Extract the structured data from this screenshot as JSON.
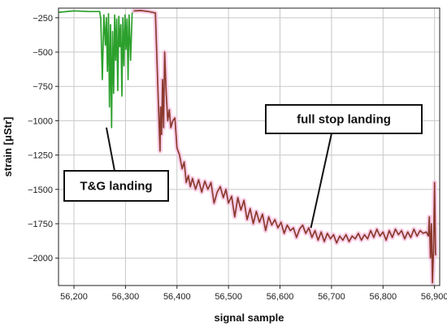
{
  "chart_data": {
    "type": "line",
    "title": "",
    "xlabel": "signal sample",
    "ylabel": "strain [μStr]",
    "xlim": [
      56170,
      56910
    ],
    "ylim": [
      -2200,
      -180
    ],
    "grid": true,
    "x_ticks": [
      56200,
      56300,
      56400,
      56500,
      56600,
      56700,
      56800,
      56900
    ],
    "x_tick_labels": [
      "56,200",
      "56,300",
      "56,400",
      "56,500",
      "56,600",
      "56,700",
      "56,800",
      "56,900"
    ],
    "y_ticks": [
      -250,
      -500,
      -750,
      -1000,
      -1250,
      -1500,
      -1750,
      -2000
    ],
    "y_tick_labels": [
      "−250",
      "−500",
      "−750",
      "−1000",
      "−1250",
      "−1500",
      "−1750",
      "−2000"
    ],
    "colors": {
      "series_tg": "#2ca02c",
      "series_fs": "#8b3a2e",
      "glow": "#f7c6e3",
      "grid": "#c8c8c8"
    },
    "series": [
      {
        "key": "tg",
        "x": [
          56170,
          56200,
          56230,
          56250,
          56252,
          56255,
          56258,
          56261,
          56263,
          56265,
          56267,
          56269,
          56271,
          56273,
          56275,
          56277,
          56279,
          56281,
          56283,
          56285,
          56287,
          56289,
          56291,
          56293,
          56295,
          56297,
          56299,
          56301,
          56303,
          56305,
          56307,
          56310,
          56313,
          56316
        ],
        "y": [
          -210,
          -200,
          -205,
          -205,
          -260,
          -700,
          -230,
          -450,
          -250,
          -640,
          -220,
          -900,
          -300,
          -1050,
          -350,
          -800,
          -230,
          -560,
          -260,
          -780,
          -240,
          -460,
          -300,
          -820,
          -250,
          -600,
          -230,
          -480,
          -260,
          -700,
          -230,
          -560,
          -215,
          -205
        ]
      },
      {
        "key": "fs",
        "x": [
          56316,
          56330,
          56345,
          56358,
          56365,
          56367,
          56368,
          56370,
          56372,
          56374,
          56376,
          56379,
          56382,
          56385,
          56388,
          56392,
          56396,
          56400,
          56405,
          56410,
          56414,
          56418,
          56422,
          56426,
          56430,
          56436,
          56442,
          56448,
          56454,
          56460,
          56466,
          56472,
          56478,
          56484,
          56490,
          56495,
          56500,
          56506,
          56512,
          56518,
          56524,
          56530,
          56536,
          56542,
          56548,
          56554,
          56560,
          56566,
          56572,
          56578,
          56584,
          56590,
          56596,
          56602,
          56608,
          56614,
          56620,
          56626,
          56632,
          56638,
          56644,
          56650,
          56656,
          56662,
          56668,
          56674,
          56680,
          56686,
          56692,
          56698,
          56704,
          56710,
          56716,
          56722,
          56728,
          56734,
          56740,
          56746,
          56752,
          56758,
          56764,
          56770,
          56776,
          56782,
          56788,
          56794,
          56800,
          56806,
          56812,
          56818,
          56824,
          56830,
          56836,
          56842,
          56848,
          56854,
          56860,
          56866,
          56872,
          56878,
          56884,
          56888,
          56890,
          56892,
          56894,
          56896,
          56898,
          56900,
          56902
        ],
        "y": [
          -200,
          -198,
          -205,
          -215,
          -1000,
          -1220,
          -900,
          -1100,
          -700,
          -1050,
          -500,
          -800,
          -1000,
          -920,
          -1050,
          -1000,
          -980,
          -1200,
          -1250,
          -1350,
          -1300,
          -1450,
          -1400,
          -1480,
          -1420,
          -1500,
          -1430,
          -1520,
          -1440,
          -1500,
          -1450,
          -1600,
          -1520,
          -1480,
          -1560,
          -1500,
          -1600,
          -1550,
          -1700,
          -1560,
          -1650,
          -1580,
          -1720,
          -1640,
          -1750,
          -1660,
          -1740,
          -1680,
          -1800,
          -1700,
          -1760,
          -1720,
          -1780,
          -1740,
          -1820,
          -1760,
          -1800,
          -1780,
          -1850,
          -1790,
          -1760,
          -1820,
          -1780,
          -1850,
          -1800,
          -1870,
          -1810,
          -1880,
          -1820,
          -1860,
          -1830,
          -1890,
          -1840,
          -1870,
          -1830,
          -1880,
          -1840,
          -1860,
          -1820,
          -1870,
          -1830,
          -1860,
          -1800,
          -1850,
          -1790,
          -1840,
          -1810,
          -1870,
          -1800,
          -1850,
          -1790,
          -1830,
          -1800,
          -1860,
          -1810,
          -1850,
          -1790,
          -1840,
          -1800,
          -1820,
          -1810,
          -1840,
          -1700,
          -2000,
          -1750,
          -2180,
          -1950,
          -1450,
          -1980
        ]
      }
    ],
    "annotations": [
      {
        "text": "T&G landing",
        "target": [
          56263,
          -1050
        ]
      },
      {
        "text": "full stop landing",
        "target": [
          56660,
          -1780
        ]
      }
    ]
  }
}
